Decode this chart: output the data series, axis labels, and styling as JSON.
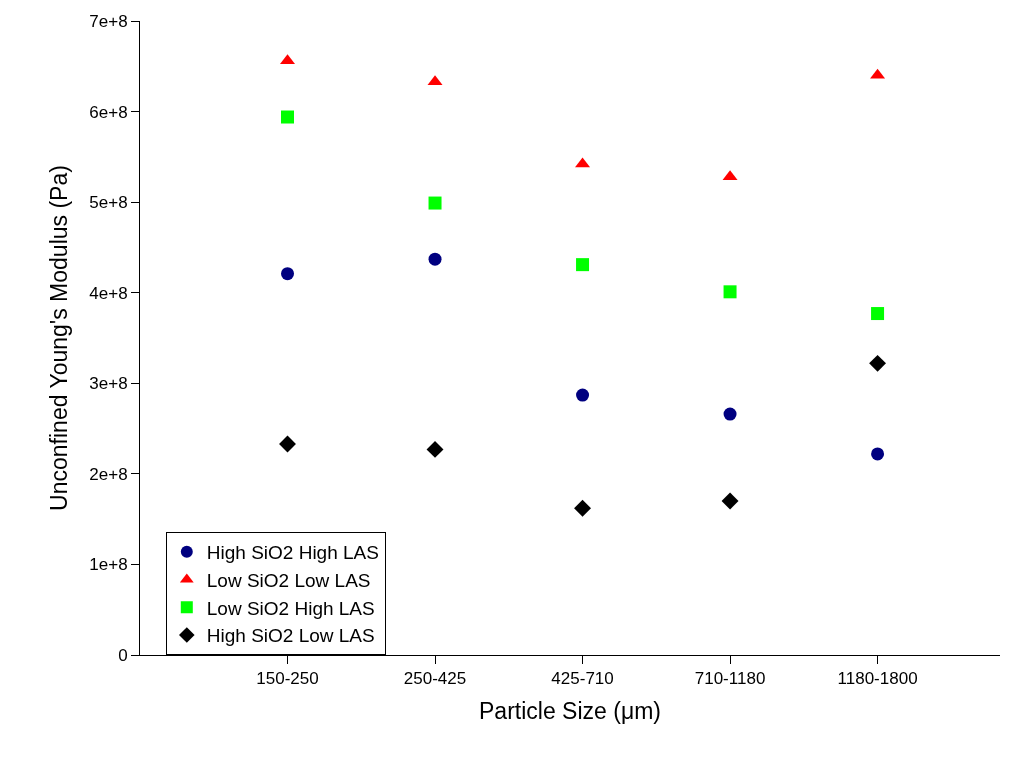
{
  "chart_data": {
    "type": "scatter",
    "xlabel": "Particle Size (μm)",
    "ylabel": "Unconfined Young's Modulus (Pa)",
    "categories": [
      "150-250",
      "250-425",
      "425-710",
      "710-1180",
      "1180-1800"
    ],
    "series": [
      {
        "name": "High SiO2 High LAS",
        "color": "#000080",
        "marker": "circle",
        "values": [
          421000000,
          437000000,
          287000000,
          266000000,
          222000000
        ]
      },
      {
        "name": "Low SiO2 Low LAS",
        "color": "#ff0000",
        "marker": "triangle",
        "values": [
          656000000,
          633000000,
          542000000,
          528000000,
          640000000
        ]
      },
      {
        "name": "Low SiO2 High LAS",
        "color": "#00ff00",
        "marker": "square",
        "values": [
          594000000,
          499000000,
          431000000,
          401000000,
          377000000
        ]
      },
      {
        "name": "High SiO2 Low LAS",
        "color": "#000000",
        "marker": "diamond",
        "values": [
          233000000,
          227000000,
          162000000,
          170000000,
          322000000
        ]
      }
    ],
    "ylim": [
      0,
      700000000
    ],
    "yticks": [
      0,
      {
        "value": 100000000,
        "label": "1e+8"
      },
      {
        "value": 200000000,
        "label": "2e+8"
      },
      {
        "value": 300000000,
        "label": "3e+8"
      },
      {
        "value": 400000000,
        "label": "4e+8"
      },
      {
        "value": 500000000,
        "label": "5e+8"
      },
      {
        "value": 600000000,
        "label": "6e+8"
      },
      {
        "value": 700000000,
        "label": "7e+8"
      }
    ],
    "legend": "bottom left"
  }
}
